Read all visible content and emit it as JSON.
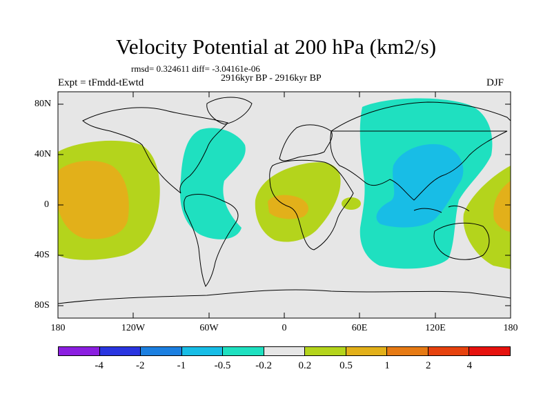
{
  "title": "Velocity Potential at 200 hPa (km2/s)",
  "stats": "rmsd= 0.324611 diff= -3.04161e-06",
  "period": "2916kyr BP - 2916kyr BP",
  "expt": "Expt = tFmdd-tEwtd",
  "season": "DJF",
  "lat_labels": [
    "80N",
    "40N",
    "0",
    "40S",
    "80S"
  ],
  "lon_labels": [
    "180",
    "120W",
    "60W",
    "0",
    "60E",
    "120E",
    "180"
  ],
  "colorbar": {
    "colors": [
      "#8b1fe0",
      "#2a35e0",
      "#1c7fe0",
      "#18bde6",
      "#1fe0c0",
      "#e6e6e6",
      "#b4d41c",
      "#e2b01a",
      "#e67a14",
      "#e6420e",
      "#e6120e"
    ],
    "labels": [
      "-4",
      "-2",
      "-1",
      "-0.5",
      "-0.2",
      "0.2",
      "0.5",
      "1",
      "2",
      "4"
    ]
  }
}
